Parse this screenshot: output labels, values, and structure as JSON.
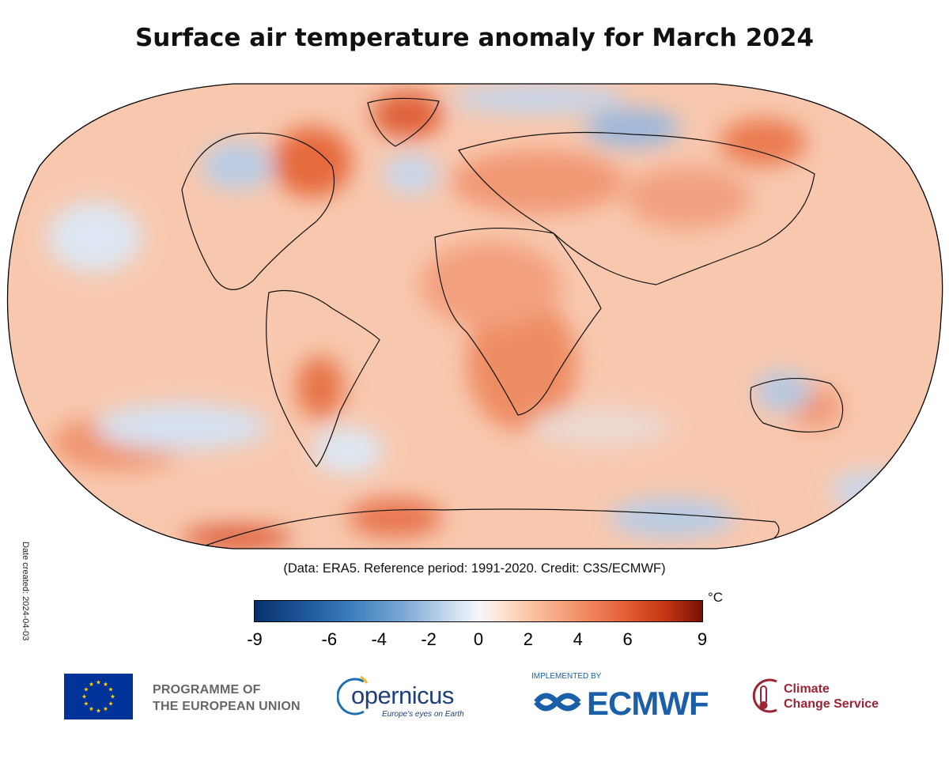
{
  "title": "Surface air temperature anomaly for March 2024",
  "date_created": "Date created: 2024-04-03",
  "credit_line": "(Data: ERA5.  Reference period: 1991-2020.  Credit: C3S/ECMWF)",
  "colorbar": {
    "unit": "°C",
    "min": -9,
    "max": 9,
    "ticks": [
      {
        "value": -9,
        "label": "-9"
      },
      {
        "value": -6,
        "label": "-6"
      },
      {
        "value": -4,
        "label": "-4"
      },
      {
        "value": -2,
        "label": "-2"
      },
      {
        "value": 0,
        "label": "0"
      },
      {
        "value": 2,
        "label": "2"
      },
      {
        "value": 4,
        "label": "4"
      },
      {
        "value": 6,
        "label": "6"
      },
      {
        "value": 9,
        "label": "9"
      }
    ],
    "colors": {
      "cold": "#08306b",
      "neutral": "#f5f8fc",
      "warm": "#7a1006"
    }
  },
  "logos": {
    "eu": {
      "line1": "PROGRAMME OF",
      "line2": "THE EUROPEAN UNION"
    },
    "copernicus": {
      "name": "opernicus",
      "tagline": "Europe's eyes on Earth"
    },
    "ecmwf": {
      "implemented_by": "IMPLEMENTED BY",
      "name": "ECMWF"
    },
    "c3s": {
      "line1": "Climate",
      "line2": "Change Service"
    }
  },
  "map_icon": "robinson-world-map"
}
